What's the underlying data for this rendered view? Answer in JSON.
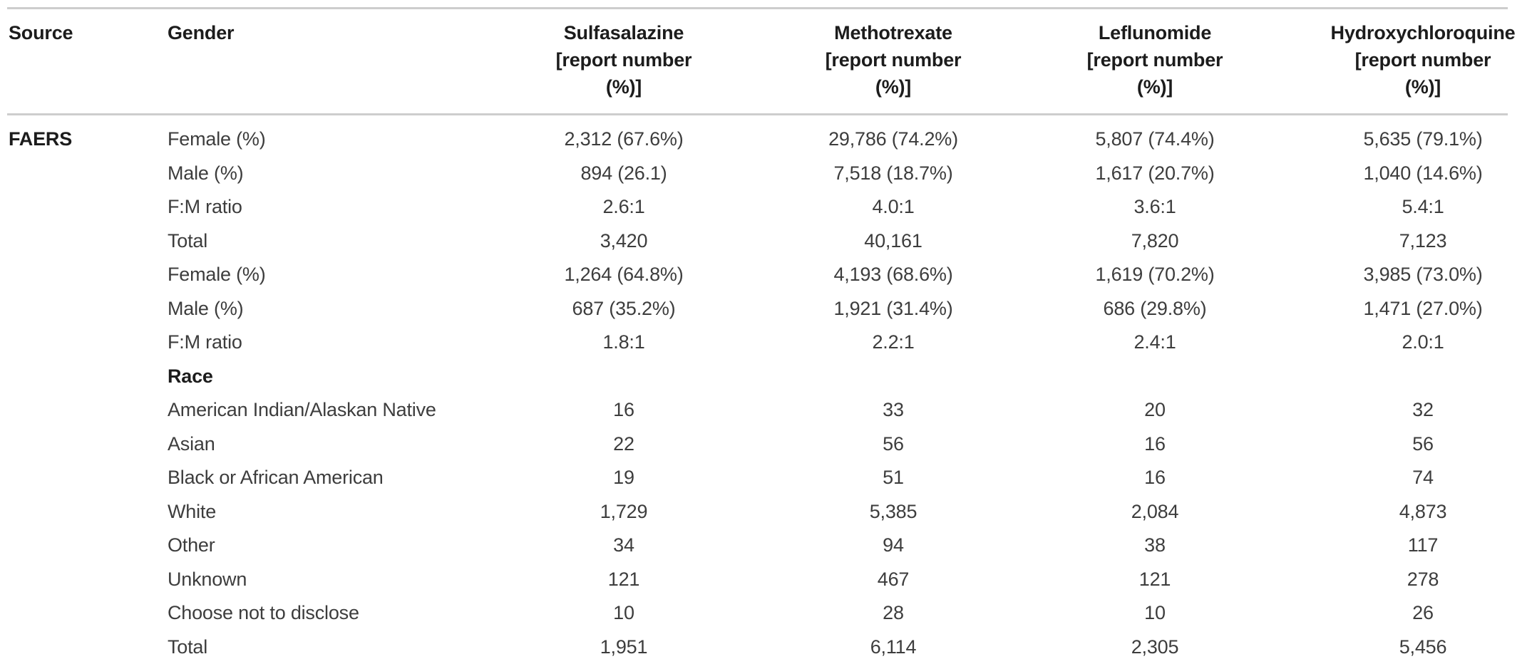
{
  "table": {
    "header": {
      "source": "Source",
      "gender": "Gender",
      "drugs": [
        "Sulfasalazine\n[report number\n(%)]",
        "Methotrexate\n[report number\n(%)]",
        "Leflunomide\n[report number\n(%)]",
        "Hydroxychloroquine\n[report number\n(%)]"
      ]
    },
    "rows": [
      {
        "source": "FAERS",
        "label": "Female (%)",
        "label_bold": false,
        "values": [
          "2,312 (67.6%)",
          "29,786 (74.2%)",
          "5,807 (74.4%)",
          "5,635 (79.1%)"
        ]
      },
      {
        "source": "",
        "label": "Male (%)",
        "label_bold": false,
        "values": [
          "894 (26.1)",
          "7,518 (18.7%)",
          "1,617 (20.7%)",
          "1,040 (14.6%)"
        ]
      },
      {
        "source": "",
        "label": "F:M ratio",
        "label_bold": false,
        "values": [
          "2.6:1",
          "4.0:1",
          "3.6:1",
          "5.4:1"
        ]
      },
      {
        "source": "",
        "label": "Total",
        "label_bold": false,
        "values": [
          "3,420",
          "40,161",
          "7,820",
          "7,123"
        ]
      },
      {
        "source": "",
        "label": "Female (%)",
        "label_bold": false,
        "values": [
          "1,264 (64.8%)",
          "4,193 (68.6%)",
          "1,619 (70.2%)",
          "3,985 (73.0%)"
        ]
      },
      {
        "source": "",
        "label": "Male (%)",
        "label_bold": false,
        "values": [
          "687 (35.2%)",
          "1,921 (31.4%)",
          "686 (29.8%)",
          "1,471 (27.0%)"
        ]
      },
      {
        "source": "",
        "label": "F:M ratio",
        "label_bold": false,
        "values": [
          "1.8:1",
          "2.2:1",
          "2.4:1",
          "2.0:1"
        ]
      },
      {
        "source": "",
        "label": "Race",
        "label_bold": true,
        "values": [
          "",
          "",
          "",
          ""
        ]
      },
      {
        "source": "",
        "label": "American Indian/Alaskan Native",
        "label_bold": false,
        "values": [
          "16",
          "33",
          "20",
          "32"
        ]
      },
      {
        "source": "",
        "label": "Asian",
        "label_bold": false,
        "values": [
          "22",
          "56",
          "16",
          "56"
        ]
      },
      {
        "source": "",
        "label": "Black or African American",
        "label_bold": false,
        "values": [
          "19",
          "51",
          "16",
          "74"
        ]
      },
      {
        "source": "",
        "label": "White",
        "label_bold": false,
        "values": [
          "1,729",
          "5,385",
          "2,084",
          "4,873"
        ]
      },
      {
        "source": "",
        "label": "Other",
        "label_bold": false,
        "values": [
          "34",
          "94",
          "38",
          "117"
        ]
      },
      {
        "source": "",
        "label": "Unknown",
        "label_bold": false,
        "values": [
          "121",
          "467",
          "121",
          "278"
        ]
      },
      {
        "source": "",
        "label": "Choose not to disclose",
        "label_bold": false,
        "values": [
          "10",
          "28",
          "10",
          "26"
        ]
      },
      {
        "source": "",
        "label": "Total",
        "label_bold": false,
        "values": [
          "1,951",
          "6,114",
          "2,305",
          "5,456"
        ]
      }
    ]
  },
  "colors": {
    "rule": "#cdcdcd",
    "header_text": "#1c1c1c",
    "body_text": "#3d3d3d",
    "background": "#ffffff"
  }
}
